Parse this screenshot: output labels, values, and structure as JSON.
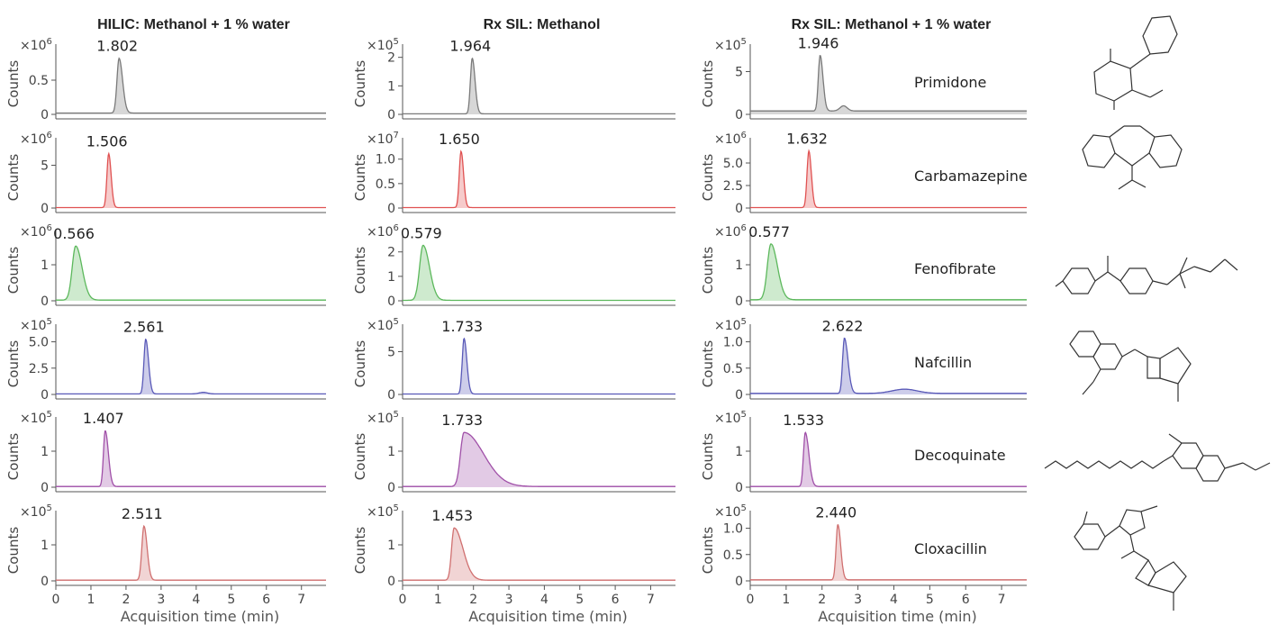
{
  "chart_data": {
    "type": "line",
    "panel_columns": [
      {
        "title": "HILIC: Methanol + 1 % water"
      },
      {
        "title": "Rx SIL: Methanol"
      },
      {
        "title": "Rx SIL: Methanol + 1 % water"
      }
    ],
    "xlabel": "Acquisition time (min)",
    "ylabel": "Counts",
    "xlim": [
      0,
      7.7
    ],
    "xticks": [
      0,
      1,
      2,
      3,
      4,
      5,
      6,
      7
    ],
    "compounds": [
      {
        "name": "Primidone",
        "color": "#7a7a7a",
        "panels": [
          {
            "peak_rt": 1.802,
            "label": "1.802",
            "exp": "6",
            "ymax": 1.0,
            "yticks": [
              0,
              0.5
            ],
            "ticklabels": [
              "0",
              "0.5"
            ],
            "apex": 0.8,
            "baseline": 0.02,
            "width": 0.06,
            "tail": 0.1,
            "bumps": []
          },
          {
            "peak_rt": 1.964,
            "label": "1.964",
            "exp": "5",
            "ymax": 2.4,
            "yticks": [
              0,
              1,
              2
            ],
            "ticklabels": [
              "0",
              "1",
              "2"
            ],
            "apex": 1.95,
            "baseline": 0.02,
            "width": 0.05,
            "tail": 0.08,
            "bumps": []
          },
          {
            "peak_rt": 1.946,
            "label": "1.946",
            "exp": "5",
            "ymax": 8.0,
            "yticks": [
              0,
              5
            ],
            "ticklabels": [
              "0",
              "5"
            ],
            "apex": 6.5,
            "baseline": 0.4,
            "width": 0.05,
            "tail": 0.08,
            "bumps": [
              [
                2.6,
                0.6,
                0.1
              ]
            ]
          }
        ]
      },
      {
        "name": "Carbamazepine",
        "color": "#e05252",
        "panels": [
          {
            "peak_rt": 1.506,
            "label": "1.506",
            "exp": "6",
            "ymax": 8.0,
            "yticks": [
              0,
              5
            ],
            "ticklabels": [
              "0",
              "5"
            ],
            "apex": 6.3,
            "baseline": 0.05,
            "width": 0.05,
            "tail": 0.07,
            "bumps": []
          },
          {
            "peak_rt": 1.65,
            "label": "1.650",
            "exp": "7",
            "ymax": 1.4,
            "yticks": [
              0,
              0.5,
              1.0
            ],
            "ticklabels": [
              "0",
              "0.5",
              "1.0"
            ],
            "apex": 1.15,
            "baseline": 0.01,
            "width": 0.05,
            "tail": 0.07,
            "bumps": []
          },
          {
            "peak_rt": 1.632,
            "label": "1.632",
            "exp": "6",
            "ymax": 7.6,
            "yticks": [
              0,
              2.5,
              5.0
            ],
            "ticklabels": [
              "0",
              "2.5",
              "5.0"
            ],
            "apex": 6.3,
            "baseline": 0.05,
            "width": 0.05,
            "tail": 0.07,
            "bumps": []
          }
        ]
      },
      {
        "name": "Fenofibrate",
        "color": "#5cb85c",
        "panels": [
          {
            "peak_rt": 0.566,
            "label": "0.566",
            "exp": "6",
            "ymax": 1.9,
            "yticks": [
              0,
              1
            ],
            "ticklabels": [
              "0",
              "1"
            ],
            "apex": 1.5,
            "baseline": 0.02,
            "width": 0.1,
            "tail": 0.18,
            "bumps": []
          },
          {
            "peak_rt": 0.579,
            "label": "0.579",
            "exp": "6",
            "ymax": 2.8,
            "yticks": [
              0,
              1,
              2
            ],
            "ticklabels": [
              "0",
              "1",
              "2"
            ],
            "apex": 2.25,
            "baseline": 0.02,
            "width": 0.1,
            "tail": 0.18,
            "bumps": []
          },
          {
            "peak_rt": 0.577,
            "label": "0.577",
            "exp": "6",
            "ymax": 1.9,
            "yticks": [
              0,
              1
            ],
            "ticklabels": [
              "0",
              "1"
            ],
            "apex": 1.55,
            "baseline": 0.03,
            "width": 0.1,
            "tail": 0.18,
            "bumps": []
          }
        ]
      },
      {
        "name": "Nafcillin",
        "color": "#5a5ab8",
        "panels": [
          {
            "peak_rt": 2.561,
            "label": "2.561",
            "exp": "5",
            "ymax": 6.5,
            "yticks": [
              0,
              2.5,
              5.0
            ],
            "ticklabels": [
              "0",
              "2.5",
              "5.0"
            ],
            "apex": 5.2,
            "baseline": 0.05,
            "width": 0.05,
            "tail": 0.08,
            "bumps": [
              [
                4.2,
                0.15,
                0.12
              ]
            ]
          },
          {
            "peak_rt": 1.733,
            "label": "1.733",
            "exp": "5",
            "ymax": 8.0,
            "yticks": [
              0,
              5
            ],
            "ticklabels": [
              "0",
              "5"
            ],
            "apex": 6.5,
            "baseline": 0.05,
            "width": 0.05,
            "tail": 0.08,
            "bumps": []
          },
          {
            "peak_rt": 2.622,
            "label": "2.622",
            "exp": "5",
            "ymax": 1.3,
            "yticks": [
              0,
              0.5,
              1.0
            ],
            "ticklabels": [
              "0",
              "0.5",
              "1.0"
            ],
            "apex": 1.05,
            "baseline": 0.02,
            "width": 0.05,
            "tail": 0.1,
            "bumps": [
              [
                4.3,
                0.08,
                0.35
              ]
            ]
          }
        ]
      },
      {
        "name": "Decoquinate",
        "color": "#a050a8",
        "panels": [
          {
            "peak_rt": 1.407,
            "label": "1.407",
            "exp": "5",
            "ymax": 1.9,
            "yticks": [
              0,
              1
            ],
            "ticklabels": [
              "0",
              "1"
            ],
            "apex": 1.55,
            "baseline": 0.02,
            "width": 0.05,
            "tail": 0.09,
            "bumps": []
          },
          {
            "peak_rt": 1.733,
            "label": "1.733",
            "exp": "5",
            "ymax": 1.9,
            "yticks": [
              0,
              1
            ],
            "ticklabels": [
              "0",
              "1"
            ],
            "apex": 1.5,
            "baseline": 0.02,
            "width": 0.1,
            "tail": 0.55,
            "bumps": []
          },
          {
            "peak_rt": 1.533,
            "label": "1.533",
            "exp": "5",
            "ymax": 1.9,
            "yticks": [
              0,
              1
            ],
            "ticklabels": [
              "0",
              "1"
            ],
            "apex": 1.5,
            "baseline": 0.02,
            "width": 0.05,
            "tail": 0.1,
            "bumps": []
          }
        ]
      },
      {
        "name": "Cloxacillin",
        "color": "#d07070",
        "panels": [
          {
            "peak_rt": 2.511,
            "label": "2.511",
            "exp": "5",
            "ymax": 1.9,
            "yticks": [
              0,
              1
            ],
            "ticklabels": [
              "0",
              "1"
            ],
            "apex": 1.5,
            "baseline": 0.02,
            "width": 0.06,
            "tail": 0.09,
            "bumps": []
          },
          {
            "peak_rt": 1.453,
            "label": "1.453",
            "exp": "5",
            "ymax": 1.9,
            "yticks": [
              0,
              1
            ],
            "ticklabels": [
              "0",
              "1"
            ],
            "apex": 1.45,
            "baseline": 0.02,
            "width": 0.07,
            "tail": 0.25,
            "bumps": []
          },
          {
            "peak_rt": 2.44,
            "label": "2.440",
            "exp": "5",
            "ymax": 1.3,
            "yticks": [
              0,
              0.5,
              1.0
            ],
            "ticklabels": [
              "0",
              "0.5",
              "1.0"
            ],
            "apex": 1.05,
            "baseline": 0.02,
            "width": 0.05,
            "tail": 0.08,
            "bumps": []
          }
        ]
      }
    ]
  }
}
